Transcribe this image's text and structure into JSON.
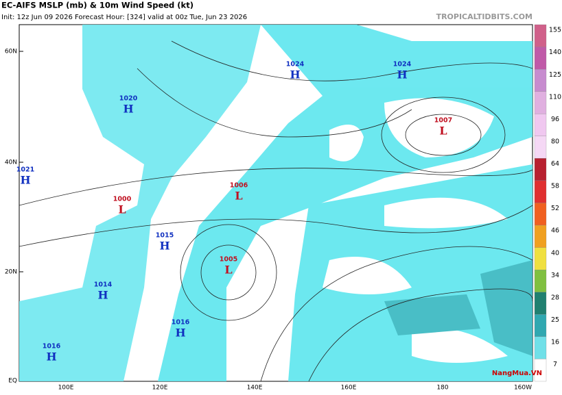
{
  "header": {
    "title": "EC-AIFS MSLP (mb) & 10m Wind Speed (kt)",
    "subtitle": "Init: 12z Jun 09 2026   Forecast Hour: [324]   valid at 00z Tue, Jun 23 2026",
    "site": "TROPICALTIDBITS.COM"
  },
  "map": {
    "lat_labels": [
      "60N",
      "40N",
      "20N",
      "EQ"
    ],
    "lon_labels": [
      "100E",
      "120E",
      "140E",
      "160E",
      "180",
      "160W"
    ],
    "centers": [
      {
        "type": "H",
        "value": 1020
      },
      {
        "type": "H",
        "value": 1021
      },
      {
        "type": "L",
        "value": 1000
      },
      {
        "type": "H",
        "value": 1015
      },
      {
        "type": "H",
        "value": 1014
      },
      {
        "type": "H",
        "value": 1016
      },
      {
        "type": "H",
        "value": 1016
      },
      {
        "type": "L",
        "value": 1005
      },
      {
        "type": "L",
        "value": 1006
      },
      {
        "type": "H",
        "value": 1024
      },
      {
        "type": "H",
        "value": 1024
      },
      {
        "type": "L",
        "value": 1007
      }
    ]
  },
  "colorbar": {
    "labels": [
      155,
      140,
      125,
      110,
      96,
      80,
      64,
      58,
      52,
      46,
      40,
      34,
      28,
      25,
      16,
      7
    ],
    "colors": [
      "#d0608a",
      "#c05aa8",
      "#c78ccf",
      "#e0b0e0",
      "#f0c8f0",
      "#f5d8f5",
      "#b82030",
      "#e03030",
      "#f06020",
      "#f0a020",
      "#f0e040",
      "#80c040",
      "#208070",
      "#30a8b0",
      "#70e0e8",
      "#ffffff"
    ]
  },
  "watermark": "NangMua.VN"
}
